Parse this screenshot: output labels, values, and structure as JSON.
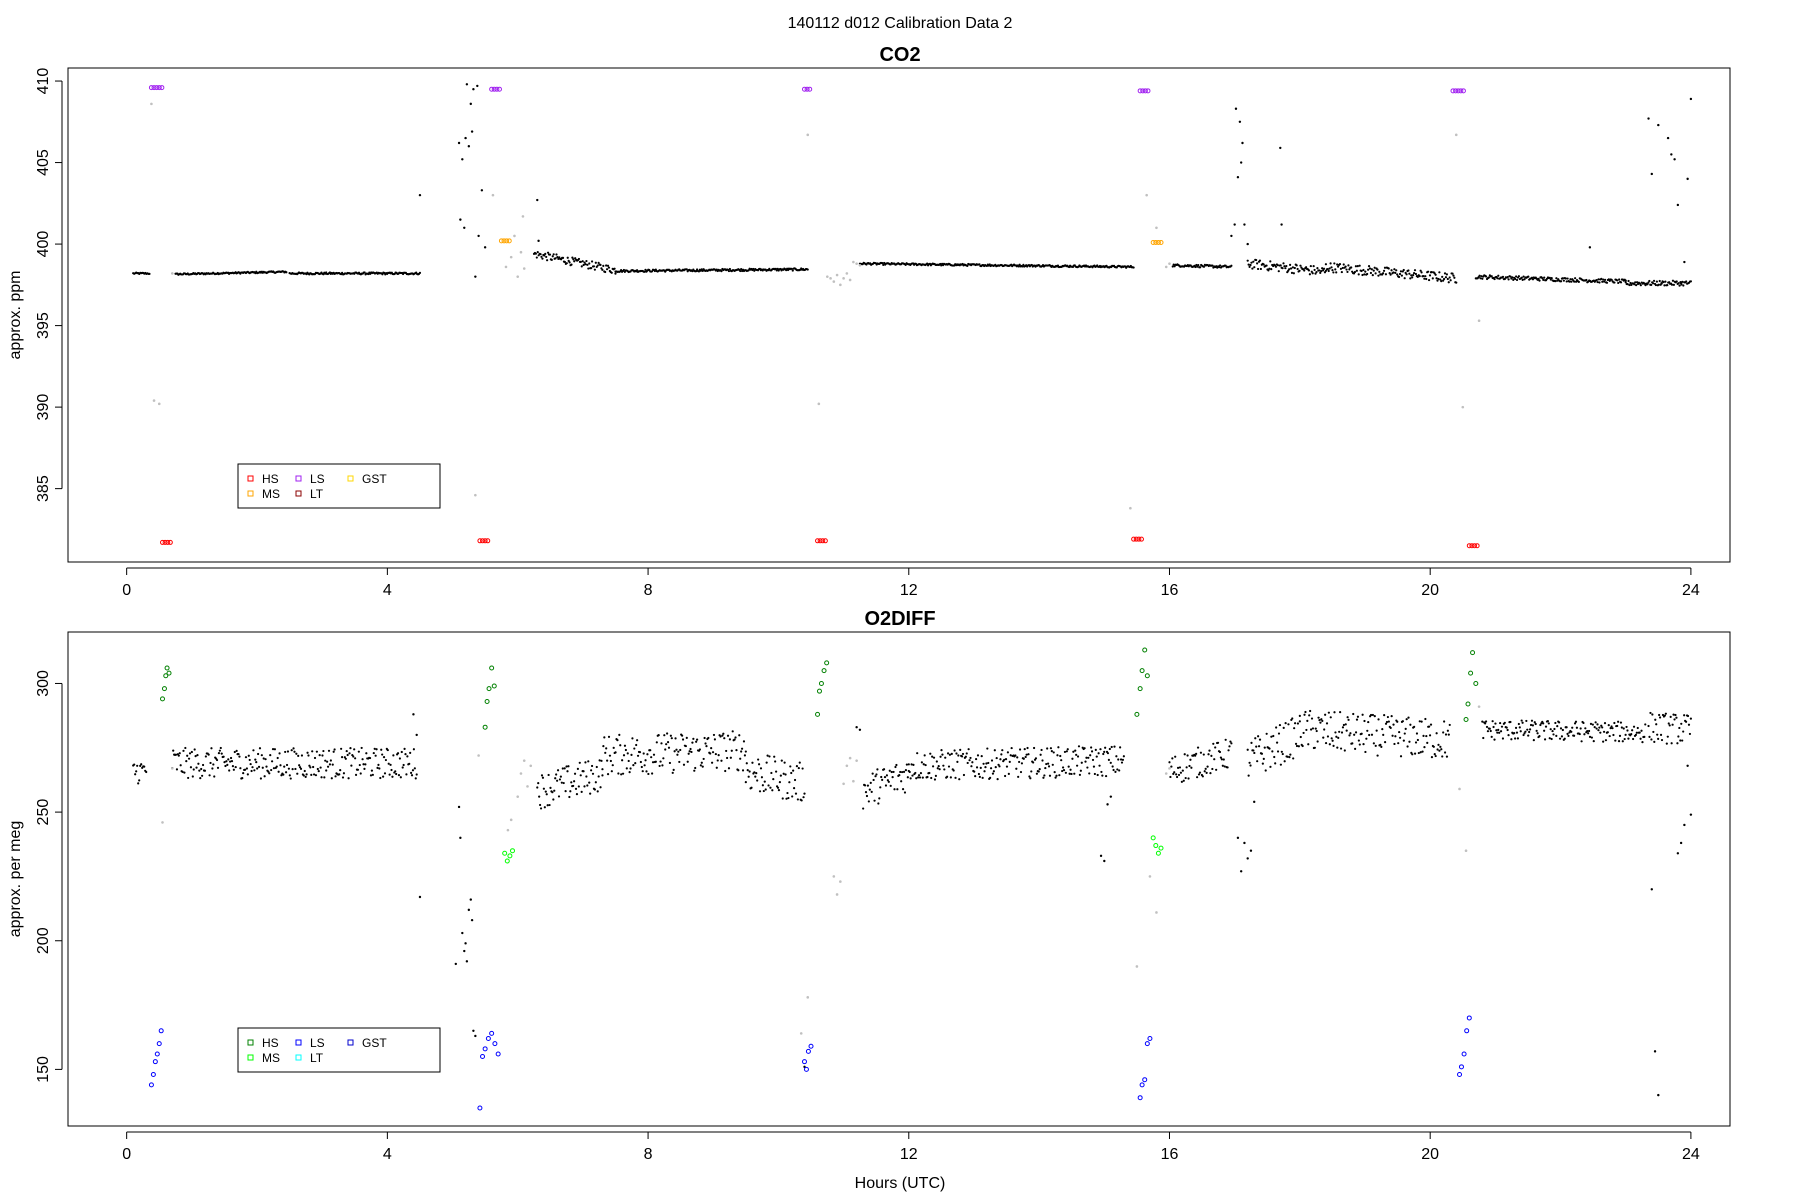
{
  "figure": {
    "title": "140112   d012   Calibration Data 2",
    "xlabel": "Hours (UTC)"
  },
  "chart_data": [
    {
      "type": "scatter",
      "title": "CO2",
      "ylabel": "approx. ppm",
      "xlim": [
        -0.9,
        24.6
      ],
      "ylim": [
        380.5,
        410.8
      ],
      "xticks": [
        0,
        4,
        8,
        12,
        16,
        20,
        24
      ],
      "yticks": [
        385,
        390,
        395,
        400,
        405,
        410
      ],
      "grid": false,
      "legend": {
        "placement": "bottom-left",
        "entries": [
          {
            "name": "HS",
            "color": "#ff0000"
          },
          {
            "name": "MS",
            "color": "#ffa500"
          },
          {
            "name": "LS",
            "color": "#a020f0"
          },
          {
            "name": "LT",
            "color": "#8b0000"
          },
          {
            "name": "GST",
            "color": "#ffd700"
          }
        ]
      },
      "baseline": {
        "color": "#000000",
        "segments": [
          {
            "x": [
              0.1,
              0.35
            ],
            "y": [
              398.2,
              398.2
            ],
            "noise": 0.05
          },
          {
            "x": [
              0.75,
              2.45
            ],
            "y": [
              398.15,
              398.3
            ],
            "noise": 0.05
          },
          {
            "x": [
              2.5,
              4.5
            ],
            "y": [
              398.2,
              398.2
            ],
            "noise": 0.06
          },
          {
            "x": [
              6.25,
              7.5
            ],
            "y": [
              399.4,
              398.4
            ],
            "noise": 0.25
          },
          {
            "x": [
              7.5,
              10.45
            ],
            "y": [
              398.35,
              398.45
            ],
            "noise": 0.07
          },
          {
            "x": [
              11.25,
              15.45
            ],
            "y": [
              398.8,
              398.6
            ],
            "noise": 0.06
          },
          {
            "x": [
              16.05,
              16.95
            ],
            "y": [
              398.7,
              398.6
            ],
            "noise": 0.08
          },
          {
            "x": [
              17.2,
              18.4
            ],
            "y": [
              398.8,
              398.3
            ],
            "noise": 0.3
          },
          {
            "x": [
              18.4,
              20.4
            ],
            "y": [
              398.6,
              397.9
            ],
            "noise": 0.3
          },
          {
            "x": [
              20.7,
              23.0
            ],
            "y": [
              398.0,
              397.7
            ],
            "noise": 0.12
          },
          {
            "x": [
              23.0,
              24.0
            ],
            "y": [
              397.6,
              397.6
            ],
            "noise": 0.15
          }
        ]
      },
      "baseline_points": {
        "color": "#000000",
        "x": [
          4.5,
          5.1,
          5.12,
          5.15,
          5.18,
          5.2,
          5.22,
          5.25,
          5.28,
          5.3,
          5.32,
          5.35,
          5.38,
          5.4,
          5.45,
          5.5,
          6.3,
          6.32,
          16.95,
          17.0,
          17.02,
          17.05,
          17.08,
          17.1,
          17.12,
          17.15,
          17.2,
          17.7,
          17.72,
          22.45,
          23.35,
          23.4,
          23.5,
          23.55,
          23.65,
          23.7,
          23.75,
          23.8,
          23.85,
          23.9,
          23.95,
          24.0
        ],
        "y": [
          403.0,
          406.2,
          401.5,
          405.2,
          401.0,
          406.5,
          409.8,
          406.0,
          408.6,
          406.9,
          409.5,
          398.0,
          409.7,
          400.5,
          403.3,
          399.8,
          402.7,
          400.2,
          400.5,
          401.2,
          408.3,
          404.1,
          407.5,
          405.0,
          406.2,
          401.2,
          400.0,
          405.9,
          401.2,
          399.8,
          407.7,
          404.3,
          407.3,
          397.6,
          406.5,
          405.5,
          405.2,
          402.4,
          397.6,
          398.9,
          404.0,
          408.9
        ]
      },
      "transition_points": {
        "color": "#c0c0c0",
        "x": [
          0.38,
          0.42,
          0.5,
          0.7,
          5.35,
          5.62,
          5.82,
          5.9,
          5.95,
          6.0,
          6.05,
          6.08,
          6.1,
          10.45,
          10.62,
          10.75,
          10.8,
          10.85,
          10.9,
          10.95,
          11.0,
          11.05,
          11.1,
          11.15,
          11.2,
          11.25,
          15.4,
          15.65,
          15.8,
          15.95,
          16.0,
          20.4,
          20.5,
          20.75
        ],
        "y": [
          408.6,
          390.4,
          390.2,
          398.2,
          384.6,
          403.0,
          398.6,
          399.2,
          400.5,
          398.0,
          399.5,
          401.7,
          398.5,
          406.7,
          390.2,
          398.0,
          397.9,
          397.7,
          398.1,
          397.5,
          397.9,
          398.2,
          397.8,
          398.9,
          398.8,
          398.7,
          383.8,
          403.0,
          401.0,
          398.6,
          398.8,
          406.7,
          390.0,
          395.3
        ]
      },
      "cal_points": [
        {
          "name": "LS",
          "color": "#a020f0",
          "x": [
            0.38,
            0.42,
            0.46,
            0.5,
            0.54,
            5.6,
            5.64,
            5.68,
            5.72,
            10.4,
            10.44,
            10.48,
            15.55,
            15.59,
            15.63,
            15.67,
            20.35,
            20.39,
            20.43,
            20.47,
            20.51
          ],
          "y": [
            409.6,
            409.6,
            409.6,
            409.6,
            409.6,
            409.5,
            409.5,
            409.5,
            409.5,
            409.5,
            409.5,
            409.5,
            409.4,
            409.4,
            409.4,
            409.4,
            409.4,
            409.4,
            409.4,
            409.4,
            409.4
          ]
        },
        {
          "name": "HS",
          "color": "#ff0000",
          "x": [
            0.55,
            0.59,
            0.63,
            0.67,
            5.42,
            5.46,
            5.5,
            5.54,
            10.6,
            10.64,
            10.68,
            10.72,
            15.45,
            15.49,
            15.53,
            15.57,
            20.6,
            20.64,
            20.68,
            20.72
          ],
          "y": [
            381.7,
            381.7,
            381.7,
            381.7,
            381.8,
            381.8,
            381.8,
            381.8,
            381.8,
            381.8,
            381.8,
            381.8,
            381.9,
            381.9,
            381.9,
            381.9,
            381.5,
            381.5,
            381.5,
            381.5
          ]
        },
        {
          "name": "MS",
          "color": "#ffa500",
          "x": [
            5.75,
            5.79,
            5.83,
            5.87,
            15.75,
            15.79,
            15.83,
            15.87
          ],
          "y": [
            400.2,
            400.2,
            400.2,
            400.2,
            400.1,
            400.1,
            400.1,
            400.1
          ]
        }
      ]
    },
    {
      "type": "scatter",
      "title": "O2DIFF",
      "ylabel": "approx. per meg",
      "xlim": [
        -0.9,
        24.6
      ],
      "ylim": [
        128,
        320
      ],
      "xticks": [
        0,
        4,
        8,
        12,
        16,
        20,
        24
      ],
      "yticks": [
        150,
        200,
        250,
        300
      ],
      "grid": false,
      "legend": {
        "placement": "bottom-left",
        "entries": [
          {
            "name": "HS",
            "color": "#008000"
          },
          {
            "name": "MS",
            "color": "#00ff00"
          },
          {
            "name": "LS",
            "color": "#0000ff"
          },
          {
            "name": "LT",
            "color": "#00ffff"
          },
          {
            "name": "GST",
            "color": "#0000cd"
          }
        ]
      },
      "baseline": {
        "color": "#000000",
        "segments": [
          {
            "x": [
              0.1,
              0.3
            ],
            "y": [
              266,
              266
            ],
            "noise": 5
          },
          {
            "x": [
              0.7,
              4.45
            ],
            "y": [
              269,
              269
            ],
            "noise": 6
          },
          {
            "x": [
              6.3,
              7.3
            ],
            "y": [
              258,
              265
            ],
            "noise": 7
          },
          {
            "x": [
              7.3,
              9.5
            ],
            "y": [
              272,
              274
            ],
            "noise": 8
          },
          {
            "x": [
              9.5,
              10.4
            ],
            "y": [
              266,
              261
            ],
            "noise": 8
          },
          {
            "x": [
              11.3,
              12.0
            ],
            "y": [
              258,
              265
            ],
            "noise": 7
          },
          {
            "x": [
              12.0,
              15.3
            ],
            "y": [
              268,
              270
            ],
            "noise": 6
          },
          {
            "x": [
              16.0,
              16.95
            ],
            "y": [
              266,
              273
            ],
            "noise": 6
          },
          {
            "x": [
              17.2,
              18.0
            ],
            "y": [
              270,
              280
            ],
            "noise": 8
          },
          {
            "x": [
              18.0,
              20.3
            ],
            "y": [
              282,
              278
            ],
            "noise": 8
          },
          {
            "x": [
              20.8,
              23.3
            ],
            "y": [
              282,
              281
            ],
            "noise": 4
          },
          {
            "x": [
              23.35,
              24.0
            ],
            "y": [
              283,
              282
            ],
            "noise": 6
          }
        ]
      },
      "baseline_points": {
        "color": "#000000",
        "x": [
          4.4,
          4.45,
          4.5,
          5.05,
          5.1,
          5.12,
          5.15,
          5.18,
          5.2,
          5.22,
          5.25,
          5.28,
          5.3,
          5.32,
          5.35,
          10.4,
          11.2,
          11.25,
          14.95,
          15.0,
          15.05,
          15.1,
          17.05,
          17.1,
          17.15,
          17.2,
          17.25,
          17.3,
          23.4,
          23.45,
          23.5,
          23.8,
          23.85,
          23.9,
          23.95,
          24.0
        ],
        "y": [
          288,
          280,
          217,
          191,
          252,
          240,
          203,
          196,
          199,
          192,
          212,
          216,
          208,
          165,
          163,
          151,
          283,
          282,
          233,
          231,
          253,
          256,
          240,
          227,
          238,
          232,
          235,
          254,
          220,
          157,
          140,
          234,
          238,
          245,
          268,
          249
        ]
      },
      "transition_points": {
        "color": "#c0c0c0",
        "x": [
          0.55,
          0.7,
          5.4,
          5.85,
          5.9,
          6.0,
          6.05,
          6.1,
          6.15,
          6.2,
          10.35,
          10.45,
          10.85,
          10.9,
          10.95,
          11.0,
          11.05,
          11.1,
          11.15,
          11.2,
          15.5,
          15.7,
          15.8,
          15.95,
          16.0,
          20.45,
          20.55,
          20.75
        ],
        "y": [
          246,
          267,
          272,
          243,
          247,
          256,
          265,
          270,
          260,
          268,
          164,
          178,
          225,
          218,
          223,
          261,
          268,
          271,
          262,
          270,
          190,
          225,
          211,
          265,
          267,
          259,
          235,
          291
        ]
      },
      "cal_points": [
        {
          "name": "HS",
          "color": "#008000",
          "x": [
            0.55,
            0.58,
            0.6,
            0.62,
            0.65,
            5.5,
            5.53,
            5.56,
            5.6,
            5.64,
            10.6,
            10.63,
            10.66,
            10.7,
            10.74,
            15.5,
            15.55,
            15.58,
            15.62,
            15.66,
            20.55,
            20.58,
            20.62,
            20.65,
            20.7
          ],
          "y": [
            294,
            298,
            303,
            306,
            304,
            283,
            293,
            298,
            306,
            299,
            288,
            297,
            300,
            305,
            308,
            288,
            298,
            305,
            313,
            303,
            286,
            292,
            304,
            312,
            300
          ]
        },
        {
          "name": "MS",
          "color": "#00ff00",
          "x": [
            5.8,
            5.84,
            5.88,
            5.92,
            15.75,
            15.79,
            15.83,
            15.87
          ],
          "y": [
            234,
            231,
            233,
            235,
            240,
            237,
            234,
            236
          ]
        },
        {
          "name": "LS",
          "color": "#0000ff",
          "x": [
            0.38,
            0.41,
            0.44,
            0.47,
            0.5,
            0.53,
            5.42,
            5.46,
            5.5,
            5.55,
            5.6,
            5.65,
            5.7,
            10.4,
            10.43,
            10.46,
            10.5,
            15.55,
            15.58,
            15.62,
            15.66,
            15.7,
            20.45,
            20.48,
            20.52,
            20.56,
            20.6
          ],
          "y": [
            144,
            148,
            153,
            156,
            160,
            165,
            135,
            155,
            158,
            162,
            164,
            160,
            156,
            153,
            150,
            157,
            159,
            139,
            144,
            146,
            160,
            162,
            148,
            151,
            156,
            165,
            170
          ]
        }
      ]
    }
  ]
}
